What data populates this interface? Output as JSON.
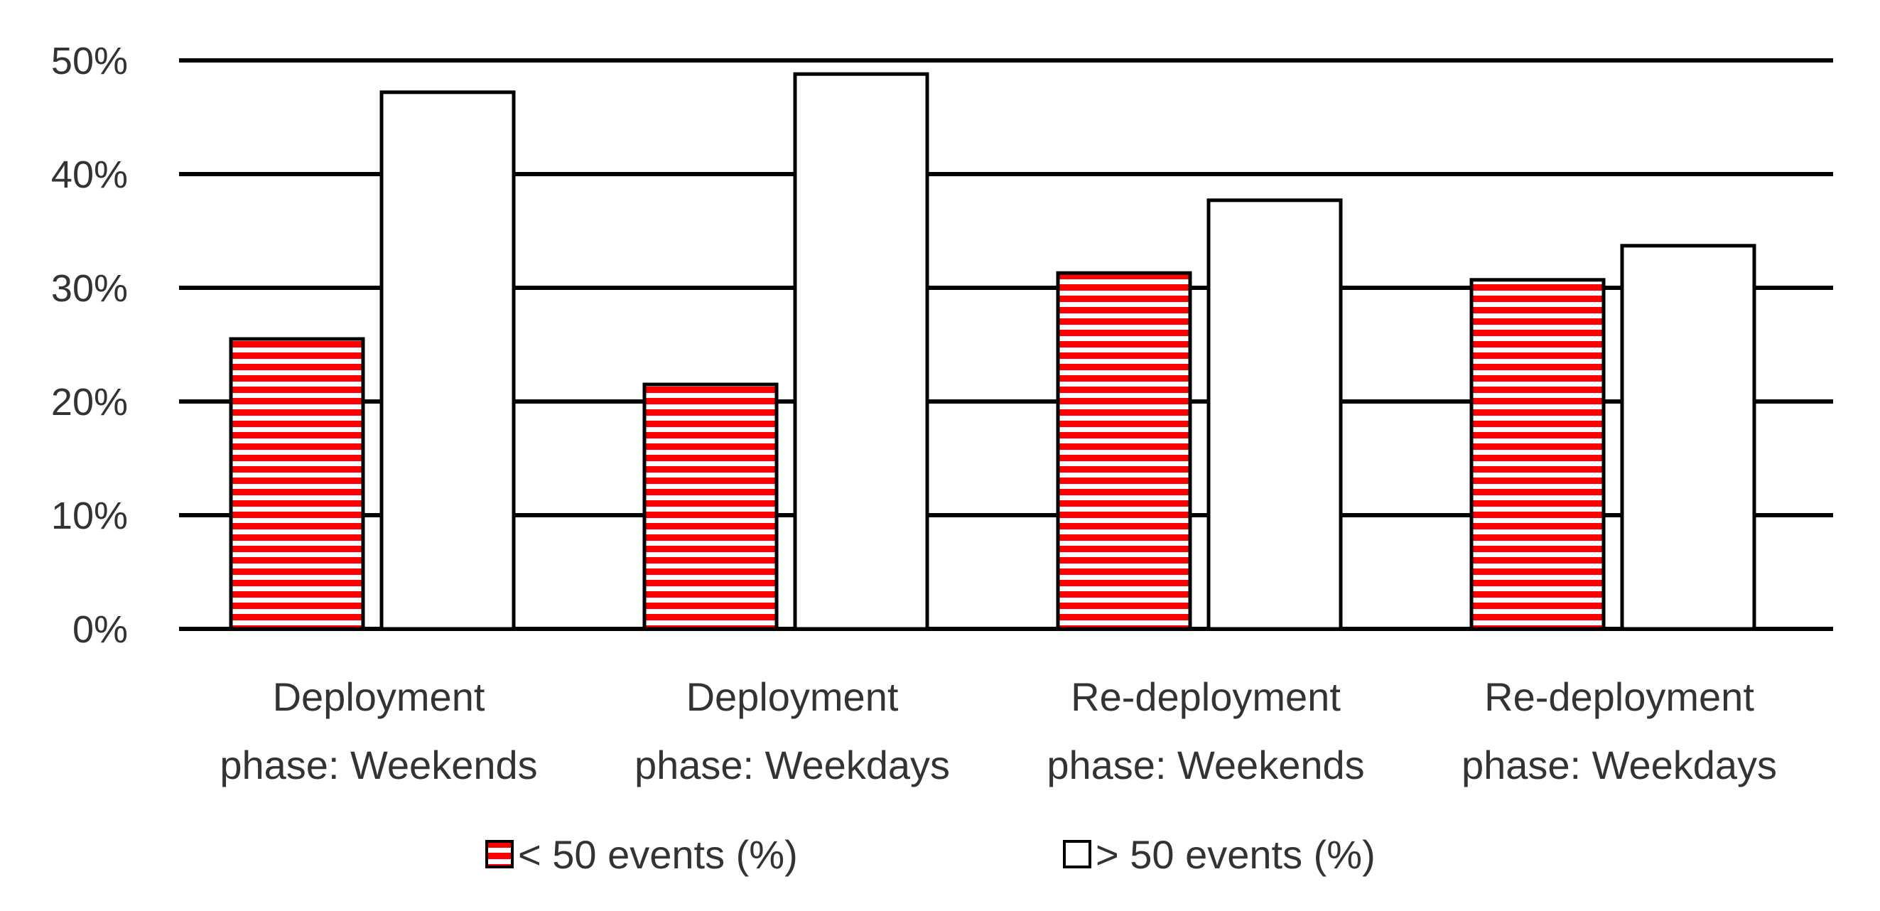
{
  "chart_data": {
    "type": "bar",
    "title": "",
    "xlabel": "",
    "ylabel": "",
    "ylim": [
      0,
      50
    ],
    "ytick_values": [
      0,
      10,
      20,
      30,
      40,
      50
    ],
    "ytick_labels": [
      "0%",
      "10%",
      "20%",
      "30%",
      "40%",
      "50%"
    ],
    "grid": true,
    "legend_position": "bottom",
    "categories": [
      [
        "Deployment",
        "phase: Weekends"
      ],
      [
        "Deployment",
        "phase: Weekdays"
      ],
      [
        "Re-deployment",
        "phase: Weekends"
      ],
      [
        "Re-deployment",
        "phase: Weekdays"
      ]
    ],
    "series": [
      {
        "name": "< 50 events (%)",
        "values": [
          25.5,
          21.5,
          31.3,
          30.7
        ],
        "color": "#ff0000",
        "pattern": "horizontal-stripes"
      },
      {
        "name": "> 50 events (%)",
        "values": [
          47.2,
          48.8,
          37.7,
          33.7
        ],
        "color": "#ffffff",
        "pattern": "solid"
      }
    ]
  }
}
